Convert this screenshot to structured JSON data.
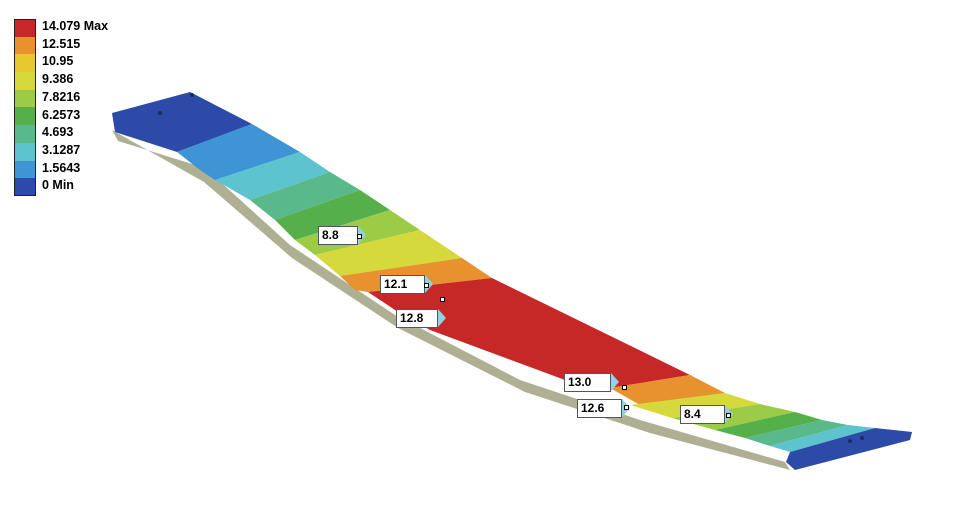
{
  "legend": {
    "items": [
      {
        "label": "14.079 Max",
        "color": "#c62828"
      },
      {
        "label": "12.515",
        "color": "#e8912f"
      },
      {
        "label": "10.95",
        "color": "#e9c82e"
      },
      {
        "label": "9.386",
        "color": "#d5d93c"
      },
      {
        "label": "7.8216",
        "color": "#9ccc45"
      },
      {
        "label": "6.2573",
        "color": "#55b04c"
      },
      {
        "label": "4.693",
        "color": "#5ab98a"
      },
      {
        "label": "3.1287",
        "color": "#5cc3cf"
      },
      {
        "label": "1.5643",
        "color": "#3f94d6"
      },
      {
        "label": "0 Min",
        "color": "#2c4aa8"
      }
    ]
  },
  "probes": [
    {
      "value": "8.8"
    },
    {
      "value": "12.1"
    },
    {
      "value": "12.8"
    },
    {
      "value": "13.0"
    },
    {
      "value": "12.6"
    },
    {
      "value": "8.4"
    }
  ]
}
